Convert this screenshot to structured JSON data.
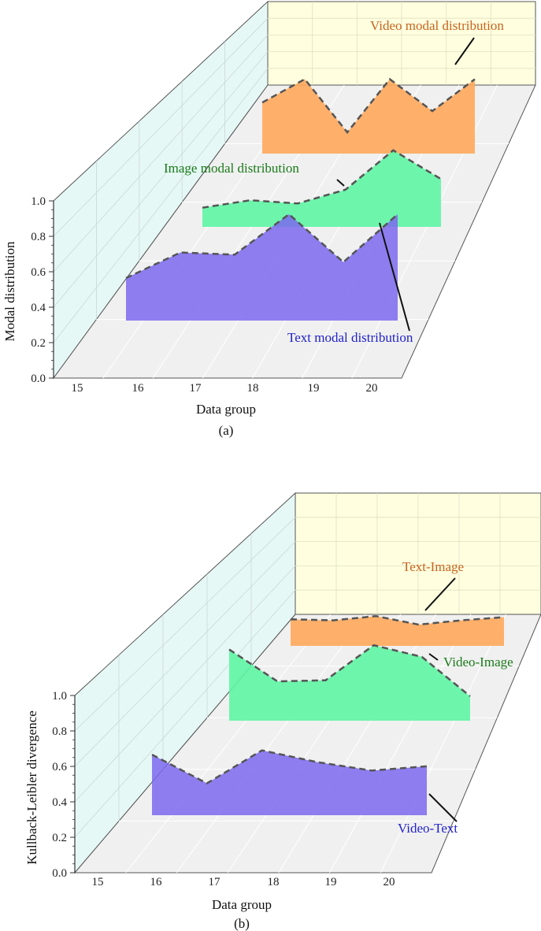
{
  "chart_data": [
    {
      "type": "area",
      "panel_label": "(a)",
      "xlabel": "Data group",
      "ylabel": "Modal distribution",
      "ylim": [
        0,
        1.0
      ],
      "yticks": [
        "0.0",
        "0.2",
        "0.4",
        "0.6",
        "0.8",
        "1.0"
      ],
      "x": [
        15,
        16,
        17,
        18,
        19,
        20
      ],
      "x_tick_labels": [
        "15",
        "16",
        "17",
        "18",
        "19",
        "20"
      ],
      "grid": true,
      "series": [
        {
          "name": "Text modal distribution",
          "x": [
            16,
            17,
            18,
            19,
            20,
            21
          ],
          "values": [
            0.4,
            0.64,
            0.62,
            1.0,
            0.55,
            1.0
          ],
          "color": "#7b68ee",
          "label_color": "#2222cc"
        },
        {
          "name": "Image modal distribution",
          "x": [
            16,
            17,
            18,
            19,
            20,
            21
          ],
          "values": [
            0.18,
            0.25,
            0.22,
            0.35,
            0.72,
            0.45
          ],
          "color": "#5ef5a4",
          "label_color": "#1a7a1a"
        },
        {
          "name": "Video modal distribution",
          "x": [
            16,
            17,
            18,
            19,
            20,
            21
          ],
          "values": [
            0.48,
            0.7,
            0.2,
            0.7,
            0.4,
            0.7
          ],
          "color": "#ffa95c",
          "label_color": "#c8641e"
        }
      ]
    },
    {
      "type": "area",
      "panel_label": "(b)",
      "xlabel": "Data group",
      "ylabel": "Kullback-Leibler divergence",
      "ylim": [
        0,
        1.0
      ],
      "yticks": [
        "0.0",
        "0.2",
        "0.4",
        "0.6",
        "0.8",
        "1.0"
      ],
      "x": [
        15,
        16,
        17,
        18,
        19,
        20
      ],
      "x_tick_labels": [
        "15",
        "16",
        "17",
        "18",
        "19",
        "20"
      ],
      "grid": true,
      "series": [
        {
          "name": "Video-Text",
          "x": [
            16,
            17,
            18,
            19,
            20,
            21
          ],
          "values": [
            0.57,
            0.3,
            0.61,
            0.5,
            0.42,
            0.46
          ],
          "color": "#7b68ee",
          "label_color": "#2222cc"
        },
        {
          "name": "Video-Image",
          "x": [
            16,
            17,
            18,
            19,
            20,
            21
          ],
          "values": [
            0.67,
            0.37,
            0.38,
            0.71,
            0.6,
            0.23
          ],
          "color": "#5ef5a4",
          "label_color": "#1a7a1a"
        },
        {
          "name": "Text-Image",
          "x": [
            16,
            17,
            18,
            19,
            20,
            21
          ],
          "values": [
            0.25,
            0.24,
            0.28,
            0.2,
            0.24,
            0.27
          ],
          "color": "#ffa95c",
          "label_color": "#c8641e"
        }
      ]
    }
  ]
}
